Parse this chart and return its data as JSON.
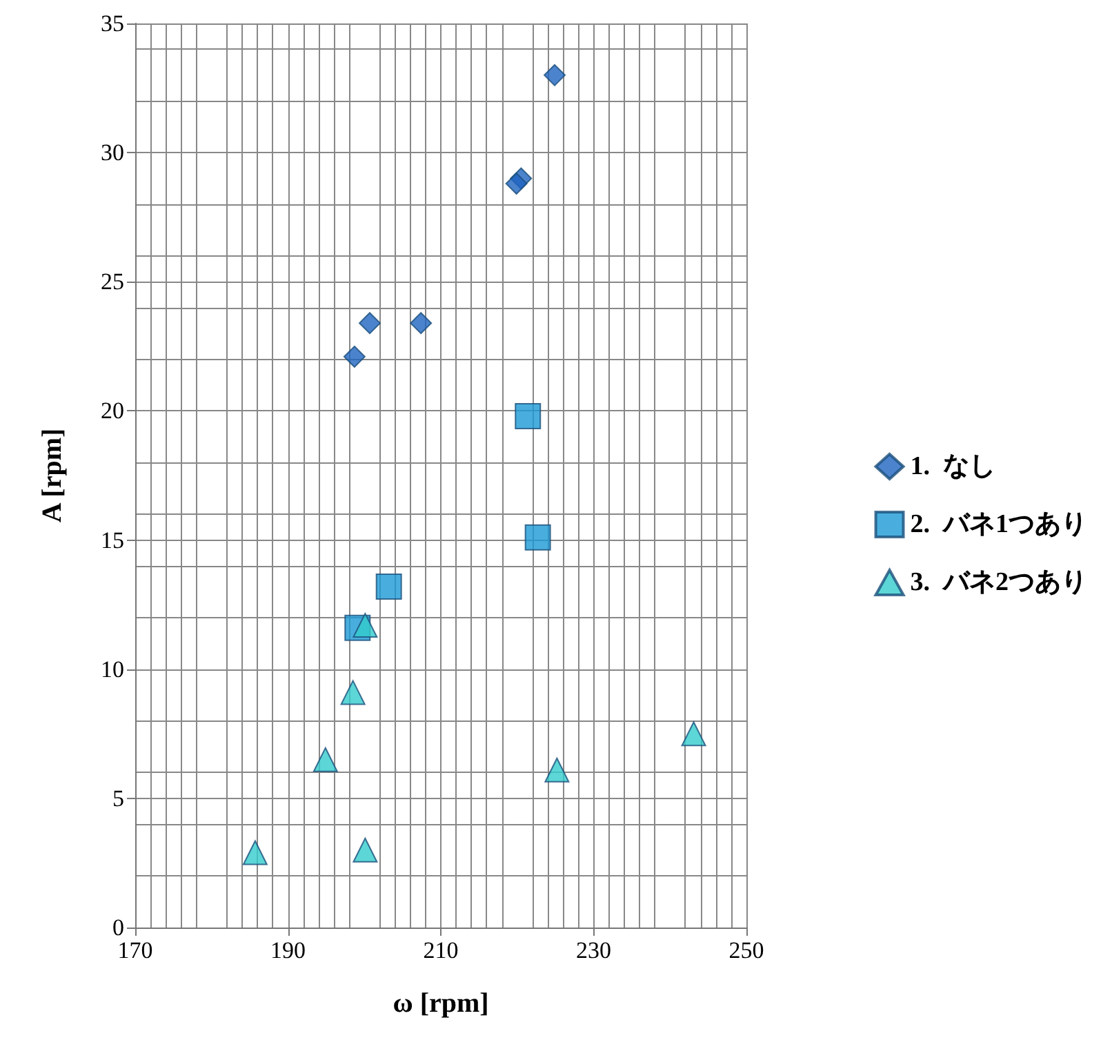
{
  "chart_data": {
    "type": "scatter",
    "xlabel": "ω [rpm]",
    "ylabel": "A [rpm]",
    "xlim": [
      170,
      250
    ],
    "xticks": [
      170,
      190,
      210,
      230,
      250
    ],
    "ylim": [
      0,
      35
    ],
    "yticks": [
      0,
      5,
      10,
      15,
      20,
      25,
      30,
      35
    ],
    "grid": true,
    "legend": "right",
    "series": [
      {
        "name": "1.  なし",
        "color": "#1f64c0",
        "marker": "diamond",
        "x": [
          224.9,
          220.5,
          219.9,
          200.7,
          207.4,
          198.7
        ],
        "values": [
          33.0,
          29.0,
          28.8,
          23.4,
          23.4,
          22.1
        ]
      },
      {
        "name": "2.  バネ1つあり",
        "color": "#1b9ad6",
        "marker": "square",
        "x": [
          221.4,
          222.7,
          203.2,
          199.1
        ],
        "values": [
          19.8,
          15.1,
          13.2,
          11.6
        ]
      },
      {
        "name": "3.  バネ2つあり",
        "color": "#33cccc",
        "marker": "triangle",
        "x": [
          200.1,
          198.5,
          194.9,
          185.7,
          200.1,
          225.2,
          243.1
        ],
        "values": [
          11.7,
          9.1,
          6.5,
          2.9,
          3.0,
          6.1,
          7.5
        ]
      }
    ]
  }
}
